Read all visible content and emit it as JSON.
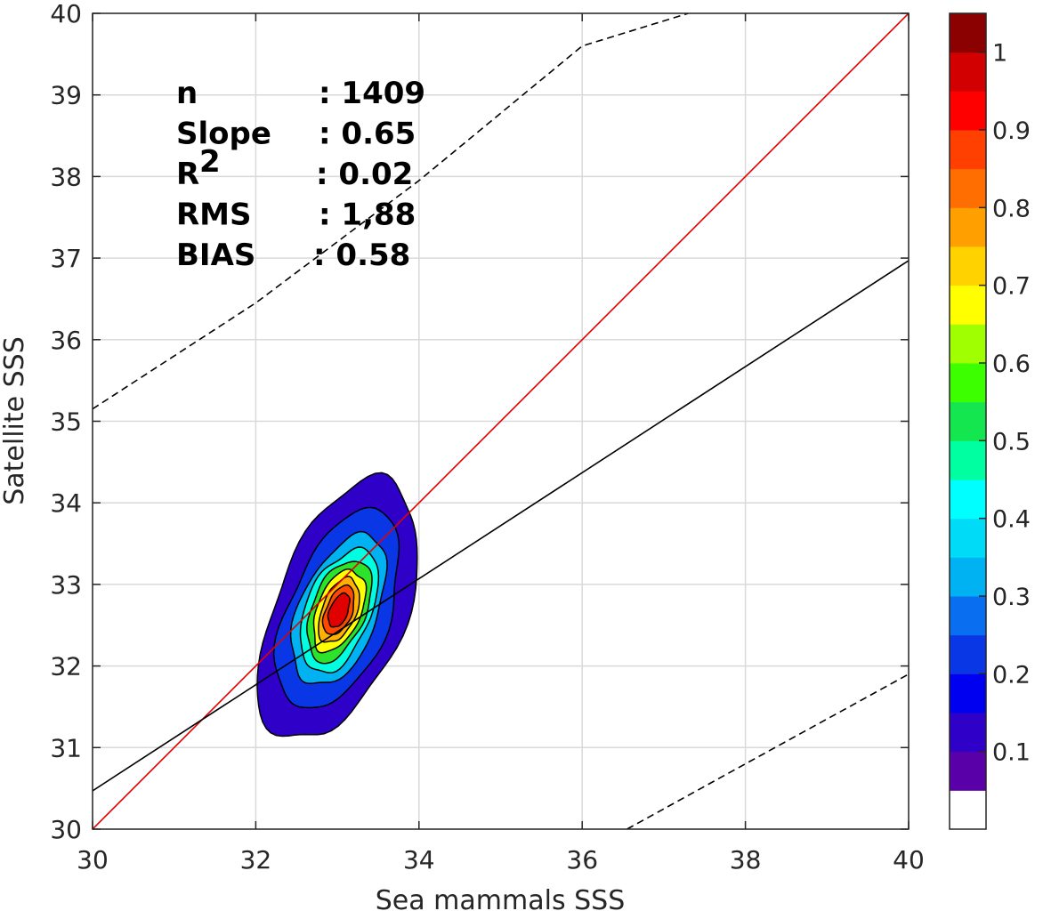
{
  "chart_data": {
    "type": "contour-density-scatter",
    "xlabel": "Sea mammals SSS",
    "ylabel": "Satellite SSS",
    "xlim": [
      30,
      40
    ],
    "ylim": [
      30,
      40
    ],
    "x_ticks": [
      30,
      32,
      34,
      36,
      38,
      40
    ],
    "y_ticks": [
      30,
      31,
      32,
      33,
      34,
      35,
      36,
      37,
      38,
      39,
      40
    ],
    "grid": true,
    "stats": [
      {
        "label": "n",
        "sup": "",
        "value": ": 1409"
      },
      {
        "label": "Slope",
        "sup": "",
        "value": ": 0.65"
      },
      {
        "label": "R",
        "sup": "2",
        "value": ": 0.02"
      },
      {
        "label": "RMS",
        "sup": "",
        "value": ": 1,88"
      },
      {
        "label": "BIAS",
        "sup": "",
        "value": ": 0.58"
      }
    ],
    "reference_lines": [
      {
        "kind": "identity",
        "color": "#e00000",
        "style": "solid",
        "points": [
          [
            30,
            30
          ],
          [
            40,
            40
          ]
        ]
      },
      {
        "kind": "regression",
        "color": "#000000",
        "style": "solid",
        "points": [
          [
            30,
            30.47
          ],
          [
            40,
            36.97
          ]
        ]
      },
      {
        "kind": "upper-bound",
        "color": "#000000",
        "style": "dashed",
        "points": [
          [
            30,
            35.15
          ],
          [
            32,
            36.45
          ],
          [
            34,
            37.95
          ],
          [
            36,
            39.6
          ],
          [
            37.3,
            40.0
          ]
        ]
      },
      {
        "kind": "lower-bound",
        "color": "#000000",
        "style": "dashed",
        "points": [
          [
            36.55,
            30.0
          ],
          [
            38,
            30.8
          ],
          [
            40,
            31.9
          ]
        ]
      }
    ],
    "density_contours": {
      "center": [
        33.02,
        32.68
      ],
      "orientation_deg": 68,
      "levels": [
        {
          "level": 0.1,
          "color": "#2f00c8",
          "semi_major": 1.7,
          "semi_minor": 0.8
        },
        {
          "level": 0.2,
          "color": "#0a37e6",
          "semi_major": 1.3,
          "semi_minor": 0.62
        },
        {
          "level": 0.3,
          "color": "#00b2f2",
          "semi_major": 0.98,
          "semi_minor": 0.48
        },
        {
          "level": 0.4,
          "color": "#00ffe0",
          "semi_major": 0.8,
          "semi_minor": 0.4
        },
        {
          "level": 0.5,
          "color": "#2ce22a",
          "semi_major": 0.66,
          "semi_minor": 0.33
        },
        {
          "level": 0.6,
          "color": "#ffff00",
          "semi_major": 0.53,
          "semi_minor": 0.27
        },
        {
          "level": 0.7,
          "color": "#ffb000",
          "semi_major": 0.42,
          "semi_minor": 0.21
        },
        {
          "level": 0.8,
          "color": "#ff4800",
          "semi_major": 0.32,
          "semi_minor": 0.16
        },
        {
          "level": 0.9,
          "color": "#e00000",
          "semi_major": 0.22,
          "semi_minor": 0.11
        }
      ]
    },
    "colorbar": {
      "tick_labels": [
        "0.1",
        "0.2",
        "0.3",
        "0.4",
        "0.5",
        "0.6",
        "0.7",
        "0.8",
        "0.9",
        "1"
      ],
      "tick_values": [
        0.1,
        0.2,
        0.3,
        0.4,
        0.5,
        0.6,
        0.7,
        0.8,
        0.9,
        1.0
      ],
      "colors": [
        "#ffffff",
        "#5a00a8",
        "#2f00c8",
        "#0000f0",
        "#0a37e6",
        "#0a6ef0",
        "#00b2f2",
        "#00dcf8",
        "#00ffff",
        "#00ffa0",
        "#14e650",
        "#3cff00",
        "#a0ff00",
        "#ffff00",
        "#ffd200",
        "#ffa000",
        "#ff6e00",
        "#ff4000",
        "#ff0000",
        "#d20000",
        "#8b0000"
      ]
    }
  }
}
